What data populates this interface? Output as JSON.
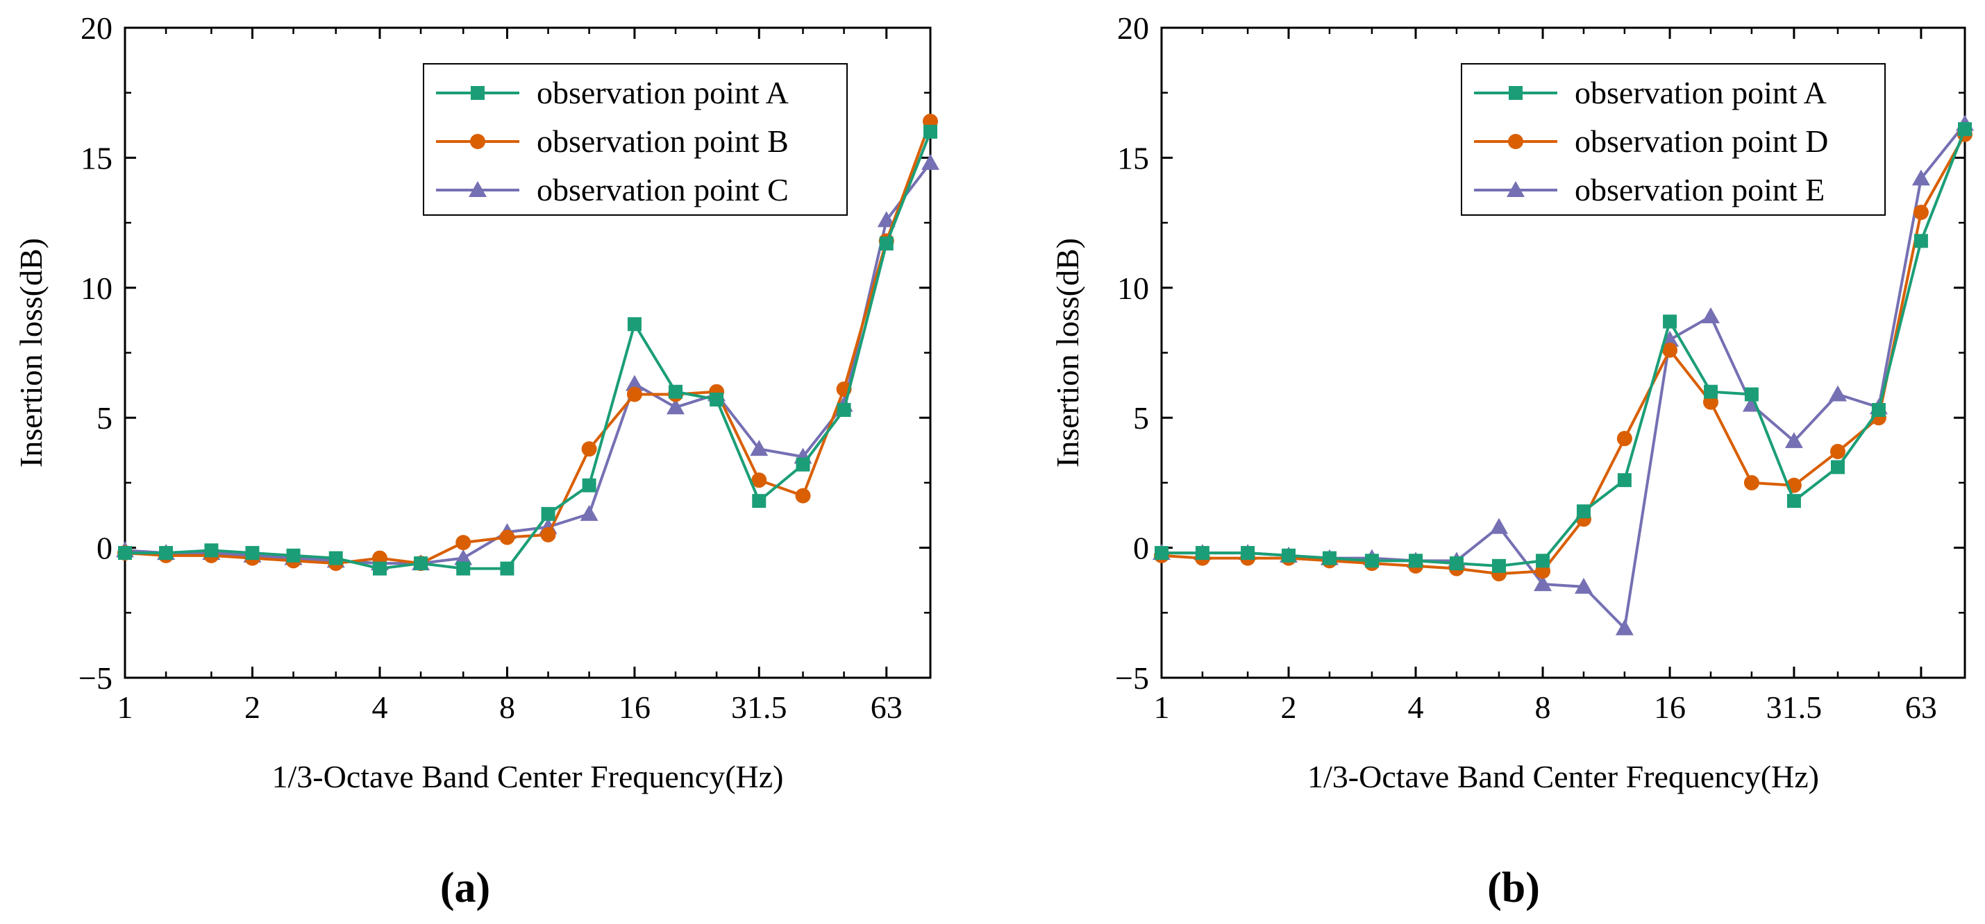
{
  "chart_data": [
    {
      "type": "line",
      "panel_label": "(a)",
      "xlabel": "1/3-Octave Band Center Frequency(Hz)",
      "ylabel": "Insertion loss(dB)",
      "x_scale": "log",
      "x": [
        1,
        1.25,
        1.6,
        2,
        2.5,
        3.15,
        4,
        5,
        6.3,
        8,
        10,
        12.5,
        16,
        20,
        25,
        31.5,
        40,
        50,
        63,
        80
      ],
      "x_ticks": [
        1,
        2,
        4,
        8,
        16,
        31.5,
        63
      ],
      "x_tick_labels": [
        "1",
        "2",
        "4",
        "8",
        "16",
        "31.5",
        "63"
      ],
      "ylim": [
        -5,
        20
      ],
      "y_ticks": [
        -5,
        0,
        5,
        10,
        15,
        20
      ],
      "y_tick_labels": [
        "−5",
        "0",
        "5",
        "10",
        "15",
        "20"
      ],
      "legend_position": "top-right",
      "grid": false,
      "series": [
        {
          "name": "observation point A",
          "color": "#1b9e77",
          "marker": "square",
          "values": [
            -0.2,
            -0.2,
            -0.1,
            -0.2,
            -0.3,
            -0.4,
            -0.8,
            -0.6,
            -0.8,
            -0.8,
            1.3,
            2.4,
            8.6,
            6.0,
            5.7,
            1.8,
            3.2,
            5.3,
            11.7,
            16.0
          ]
        },
        {
          "name": "observation point B",
          "color": "#d95f02",
          "marker": "circle",
          "values": [
            -0.2,
            -0.3,
            -0.3,
            -0.4,
            -0.5,
            -0.6,
            -0.4,
            -0.6,
            0.2,
            0.4,
            0.5,
            3.8,
            5.9,
            5.9,
            6.0,
            2.6,
            2.0,
            6.1,
            11.8,
            16.4
          ]
        },
        {
          "name": "observation point C",
          "color": "#7570b3",
          "marker": "triangle",
          "values": [
            -0.1,
            -0.2,
            -0.2,
            -0.3,
            -0.4,
            -0.5,
            -0.6,
            -0.6,
            -0.4,
            0.6,
            0.8,
            1.3,
            6.3,
            5.4,
            5.9,
            3.8,
            3.5,
            5.5,
            12.6,
            14.8
          ]
        }
      ]
    },
    {
      "type": "line",
      "panel_label": "(b)",
      "xlabel": "1/3-Octave Band Center Frequency(Hz)",
      "ylabel": "Insertion loss(dB)",
      "x_scale": "log",
      "x": [
        1,
        1.25,
        1.6,
        2,
        2.5,
        3.15,
        4,
        5,
        6.3,
        8,
        10,
        12.5,
        16,
        20,
        25,
        31.5,
        40,
        50,
        63,
        80
      ],
      "x_ticks": [
        1,
        2,
        4,
        8,
        16,
        31.5,
        63
      ],
      "x_tick_labels": [
        "1",
        "2",
        "4",
        "8",
        "16",
        "31.5",
        "63"
      ],
      "ylim": [
        -5,
        20
      ],
      "y_ticks": [
        -5,
        0,
        5,
        10,
        15,
        20
      ],
      "y_tick_labels": [
        "−5",
        "0",
        "5",
        "10",
        "15",
        "20"
      ],
      "legend_position": "top-right",
      "grid": false,
      "series": [
        {
          "name": "observation point A",
          "color": "#1b9e77",
          "marker": "square",
          "values": [
            -0.2,
            -0.2,
            -0.2,
            -0.3,
            -0.4,
            -0.5,
            -0.5,
            -0.6,
            -0.7,
            -0.5,
            1.4,
            2.6,
            8.7,
            6.0,
            5.9,
            1.8,
            3.1,
            5.3,
            11.8,
            16.1
          ]
        },
        {
          "name": "observation point D",
          "color": "#d95f02",
          "marker": "circle",
          "values": [
            -0.3,
            -0.4,
            -0.4,
            -0.4,
            -0.5,
            -0.6,
            -0.7,
            -0.8,
            -1.0,
            -0.9,
            1.1,
            4.2,
            7.6,
            5.6,
            2.5,
            2.4,
            3.7,
            5.0,
            12.9,
            15.9
          ]
        },
        {
          "name": "observation point E",
          "color": "#7570b3",
          "marker": "triangle",
          "values": [
            -0.2,
            -0.2,
            -0.2,
            -0.3,
            -0.4,
            -0.4,
            -0.5,
            -0.5,
            0.8,
            -1.4,
            -1.5,
            -3.1,
            8.0,
            8.9,
            5.5,
            4.1,
            5.9,
            5.4,
            14.2,
            16.3
          ]
        }
      ]
    }
  ]
}
